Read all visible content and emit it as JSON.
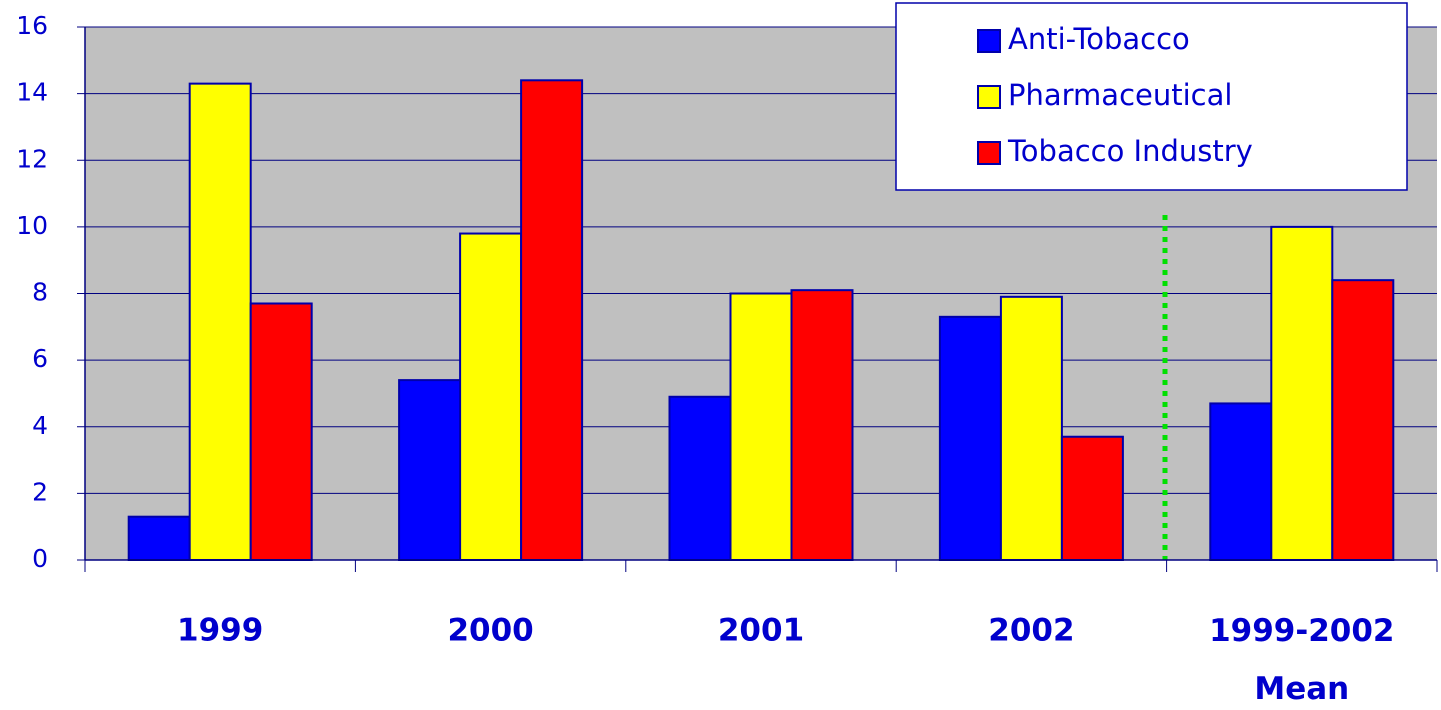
{
  "chart_data": {
    "type": "bar",
    "categories": [
      "1999",
      "2000",
      "2001",
      "2002",
      "1999-2002 Mean"
    ],
    "series": [
      {
        "name": "Anti-Tobacco",
        "color": "#0000ff",
        "values": [
          1.3,
          5.4,
          4.9,
          7.3,
          4.7
        ]
      },
      {
        "name": "Pharmaceutical",
        "color": "#ffff00",
        "values": [
          14.3,
          9.8,
          8.0,
          7.9,
          10.0
        ]
      },
      {
        "name": "Tobacco Industry",
        "color": "#ff0000",
        "values": [
          7.7,
          14.4,
          8.1,
          3.7,
          8.4
        ]
      }
    ],
    "ylim": [
      0,
      16
    ],
    "yticks": [
      0,
      2,
      4,
      6,
      8,
      10,
      12,
      14,
      16
    ],
    "grid": true,
    "legend": "upper right"
  }
}
